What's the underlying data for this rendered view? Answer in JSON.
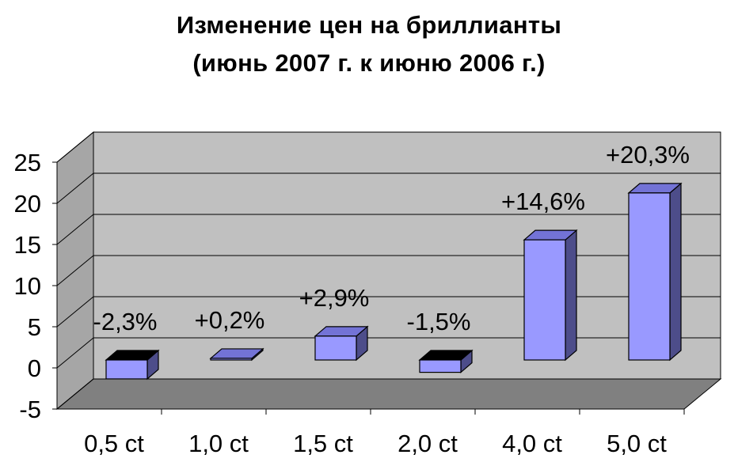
{
  "chart_data": {
    "type": "bar",
    "title": "Изменение цен на бриллианты",
    "subtitle": "(июнь 2007 г. к июню 2006 г.)",
    "categories": [
      "0,5 ct",
      "1,0 ct",
      "1,5 ct",
      "2,0 ct",
      "4,0 ct",
      "5,0 ct"
    ],
    "values": [
      -2.3,
      0.2,
      2.9,
      -1.5,
      14.6,
      20.3
    ],
    "data_labels": [
      "-2,3%",
      "+0,2%",
      "+2,9%",
      "-1,5%",
      "+14,6%",
      "+20,3%"
    ],
    "y_ticks": [
      "-5",
      "0",
      "5",
      "10",
      "15",
      "20",
      "25"
    ],
    "ylim": [
      -5,
      25
    ],
    "grid": true,
    "style": "3d",
    "colors": {
      "bar_front": "#9999ff",
      "bar_side": "#4d4d8a",
      "bar_top": "#7373d6",
      "bar_neg_top": "#000000",
      "back_wall": "#c0c0c0",
      "side_wall": "#a6a6a6",
      "floor": "#808080",
      "gridline": "#000000"
    }
  }
}
